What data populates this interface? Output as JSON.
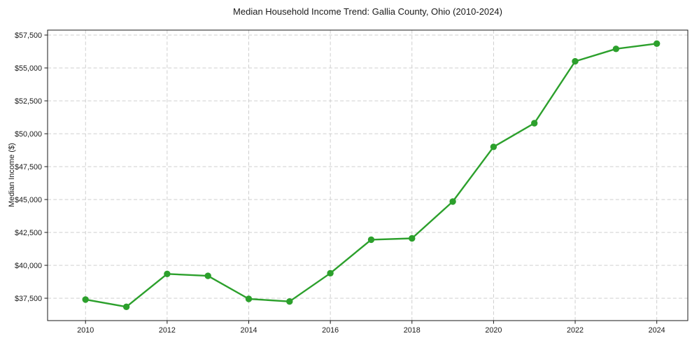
{
  "page": {
    "background": "#ffffff"
  },
  "chart_data": {
    "type": "line",
    "title": "Median Household Income Trend: Gallia County, Ohio (2010-2024)",
    "xlabel": "",
    "ylabel": "Median Income ($)",
    "x": [
      2010,
      2011,
      2012,
      2013,
      2014,
      2015,
      2016,
      2017,
      2018,
      2019,
      2020,
      2021,
      2022,
      2023,
      2024
    ],
    "series": [
      {
        "name": "Median household income",
        "color": "#2ca02c",
        "values": [
          37400,
          36850,
          39350,
          39200,
          37450,
          37250,
          39400,
          41950,
          42050,
          44850,
          49000,
          50800,
          55500,
          56450,
          56850
        ]
      }
    ],
    "x_ticks": [
      2010,
      2012,
      2014,
      2016,
      2018,
      2020,
      2022,
      2024
    ],
    "x_tick_labels": [
      "2010",
      "2012",
      "2014",
      "2016",
      "2018",
      "2020",
      "2022",
      "2024"
    ],
    "y_ticks": [
      37500,
      40000,
      42500,
      45000,
      47500,
      50000,
      52500,
      55000,
      57500
    ],
    "y_tick_labels": [
      "$37,500",
      "$40,000",
      "$42,500",
      "$45,000",
      "$47,500",
      "$50,000",
      "$52,500",
      "$55,000",
      "$57,500"
    ],
    "xlim": [
      2009.07,
      2024.76
    ],
    "ylim": [
      35800,
      57875
    ],
    "grid": true,
    "grid_style": "dashed",
    "legend": "none",
    "marker": "circle",
    "colors": {
      "line": "#2ca02c",
      "marker": "#2ca02c",
      "grid": "#c9c9c9",
      "axis": "#1a1a1a",
      "text": "#1a1a1a",
      "plot_background": "#ffffff"
    }
  }
}
